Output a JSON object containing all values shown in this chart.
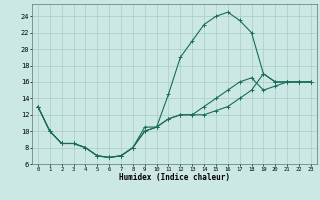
{
  "xlabel": "Humidex (Indice chaleur)",
  "background_color": "#cce8e4",
  "grid_color": "#aaccc8",
  "line_color": "#1a6b5a",
  "xlim": [
    -0.5,
    23.5
  ],
  "ylim": [
    6,
    25.5
  ],
  "yticks": [
    6,
    8,
    10,
    12,
    14,
    16,
    18,
    20,
    22,
    24
  ],
  "xticks": [
    0,
    1,
    2,
    3,
    4,
    5,
    6,
    7,
    8,
    9,
    10,
    11,
    12,
    13,
    14,
    15,
    16,
    17,
    18,
    19,
    20,
    21,
    22,
    23
  ],
  "line1_x": [
    0,
    1,
    2,
    3,
    4,
    5,
    6,
    7,
    8,
    9,
    10,
    11,
    12,
    13,
    14,
    15,
    16,
    17,
    18,
    19,
    20,
    21,
    22,
    23
  ],
  "line1_y": [
    13,
    10,
    8.5,
    8.5,
    8,
    7,
    6.8,
    7,
    8,
    10.5,
    10.5,
    14.5,
    19,
    21,
    23,
    24,
    24.5,
    23.5,
    22,
    17,
    16,
    16,
    16,
    16
  ],
  "line2_x": [
    0,
    1,
    2,
    3,
    4,
    5,
    6,
    7,
    8,
    9,
    10,
    11,
    12,
    13,
    14,
    15,
    16,
    17,
    18,
    19,
    20,
    21,
    22,
    23
  ],
  "line2_y": [
    13,
    10,
    8.5,
    8.5,
    8,
    7,
    6.8,
    7,
    8,
    10,
    10.5,
    11.5,
    12,
    12,
    12,
    12.5,
    13,
    14,
    15,
    17,
    16,
    16,
    16,
    16
  ],
  "line3_x": [
    0,
    1,
    2,
    3,
    4,
    5,
    6,
    7,
    8,
    9,
    10,
    11,
    12,
    13,
    14,
    15,
    16,
    17,
    18,
    19,
    20,
    21,
    22,
    23
  ],
  "line3_y": [
    13,
    10,
    8.5,
    8.5,
    8,
    7,
    6.8,
    7,
    8,
    10,
    10.5,
    11.5,
    12,
    12,
    13,
    14,
    15,
    16,
    16.5,
    15,
    15.5,
    16,
    16,
    16
  ]
}
